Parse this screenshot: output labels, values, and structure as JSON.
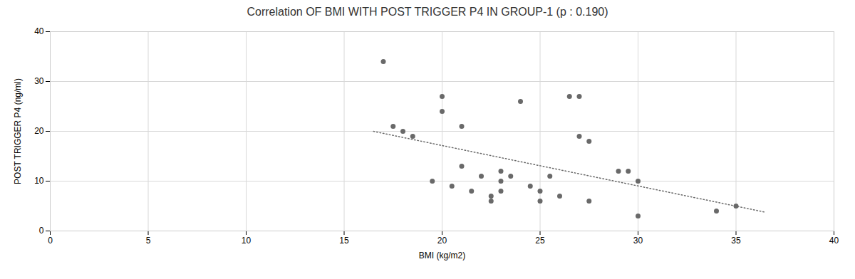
{
  "chart_data": {
    "type": "scatter",
    "title": "Correlation OF BMI WITH POST TRIGGER P4 IN GROUP-1 (p : 0.190)",
    "x_label": "BMI (kg/m2)",
    "y_label": "POST TRIGGER P4 (ng/ml)",
    "xlim": [
      0,
      40
    ],
    "ylim": [
      0,
      40
    ],
    "xticks": [
      0,
      5,
      10,
      15,
      20,
      25,
      30,
      35,
      40
    ],
    "yticks": [
      0,
      10,
      20,
      30,
      40
    ],
    "grid": true,
    "series": [
      {
        "type": "scatter",
        "marker": "circle",
        "color": "#696969",
        "x": [
          17,
          17.5,
          18,
          18.5,
          19.5,
          20,
          20,
          20.5,
          21,
          21,
          21.5,
          22,
          22.5,
          22.5,
          23,
          23,
          23,
          23.5,
          24,
          24.5,
          25,
          25,
          25.5,
          26,
          26.5,
          27,
          27,
          27.5,
          27.5,
          29,
          29.5,
          30,
          30,
          34,
          35
        ],
        "values": [
          34,
          21,
          20,
          19,
          10,
          27,
          24,
          9,
          13,
          21,
          8,
          11,
          7,
          6,
          12,
          10,
          8,
          11,
          26,
          9,
          8,
          6,
          11,
          7,
          27,
          27,
          19,
          18,
          6,
          12,
          12,
          10,
          3,
          4,
          5
        ]
      },
      {
        "type": "line",
        "line_style": "dotted",
        "color": "#696969",
        "x": [
          16.5,
          36.5
        ],
        "values": [
          19.9903,
          3.7632
        ]
      }
    ]
  }
}
